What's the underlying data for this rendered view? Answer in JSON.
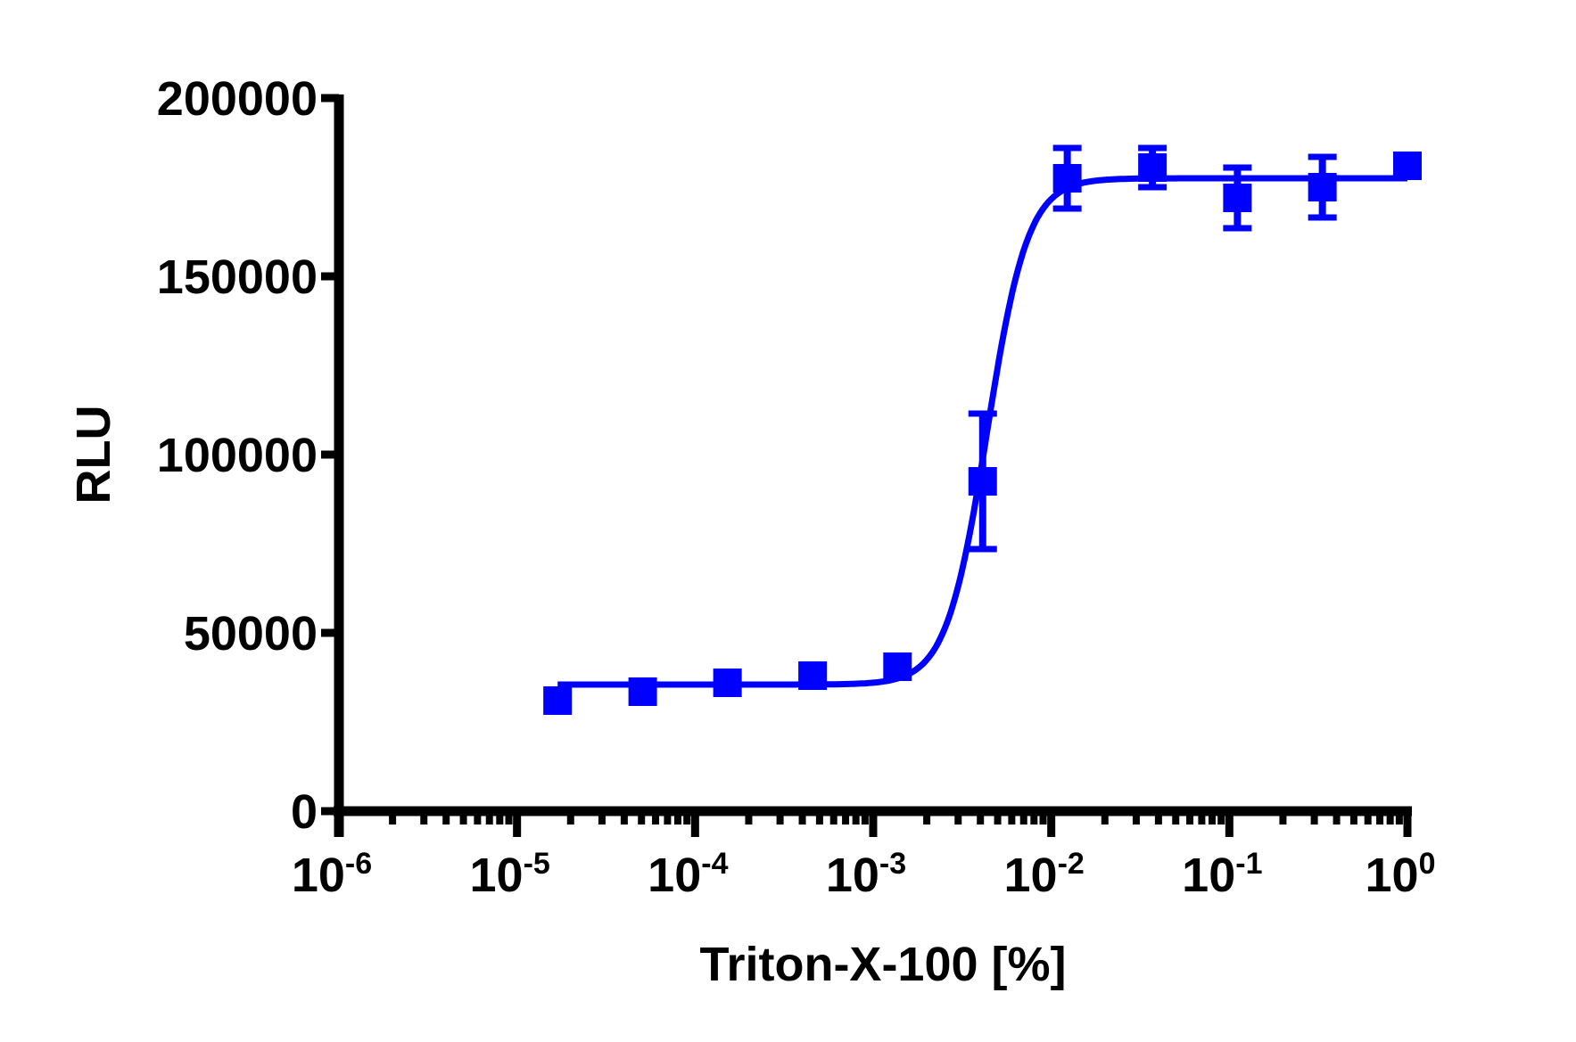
{
  "chart_data": {
    "type": "scatter",
    "title": "",
    "xlabel": "Triton-X-100 [%]",
    "ylabel": "RLU",
    "xscale": "log",
    "xlim": [
      1e-06,
      1
    ],
    "ylim": [
      0,
      200000
    ],
    "grid": false,
    "legend": null,
    "x_tick_labels": [
      {
        "base": "10",
        "exp": "-6",
        "value": 1e-06
      },
      {
        "base": "10",
        "exp": "-5",
        "value": 1e-05
      },
      {
        "base": "10",
        "exp": "-4",
        "value": 0.0001
      },
      {
        "base": "10",
        "exp": "-3",
        "value": 0.001
      },
      {
        "base": "10",
        "exp": "-2",
        "value": 0.01
      },
      {
        "base": "10",
        "exp": "-1",
        "value": 0.1
      },
      {
        "base": "10",
        "exp": "0",
        "value": 1
      }
    ],
    "y_tick_labels": [
      "0",
      "50000",
      "100000",
      "150000",
      "200000"
    ],
    "y_ticks": [
      0,
      50000,
      100000,
      150000,
      200000
    ],
    "series": [
      {
        "name": "Triton-X-100",
        "color": "#0000ff",
        "marker": "square",
        "x": [
          1.69e-05,
          5.08e-05,
          0.000152,
          0.000457,
          0.00137,
          0.00412,
          0.0123,
          0.037,
          0.111,
          0.333,
          1.0
        ],
        "y": [
          31000,
          33500,
          36000,
          38000,
          40500,
          92500,
          177500,
          180500,
          172000,
          175000,
          181000
        ],
        "error": [
          0,
          0,
          0,
          0,
          0,
          19000,
          8500,
          5500,
          8500,
          8500,
          0
        ]
      }
    ],
    "fit": {
      "type": "sigmoidal_4pl",
      "color": "#0000ff",
      "bottom": 35500,
      "top": 177500,
      "logEC50": -2.36,
      "hill_slope": 3.8,
      "x_range": [
        1.69e-05,
        1.0
      ]
    }
  }
}
